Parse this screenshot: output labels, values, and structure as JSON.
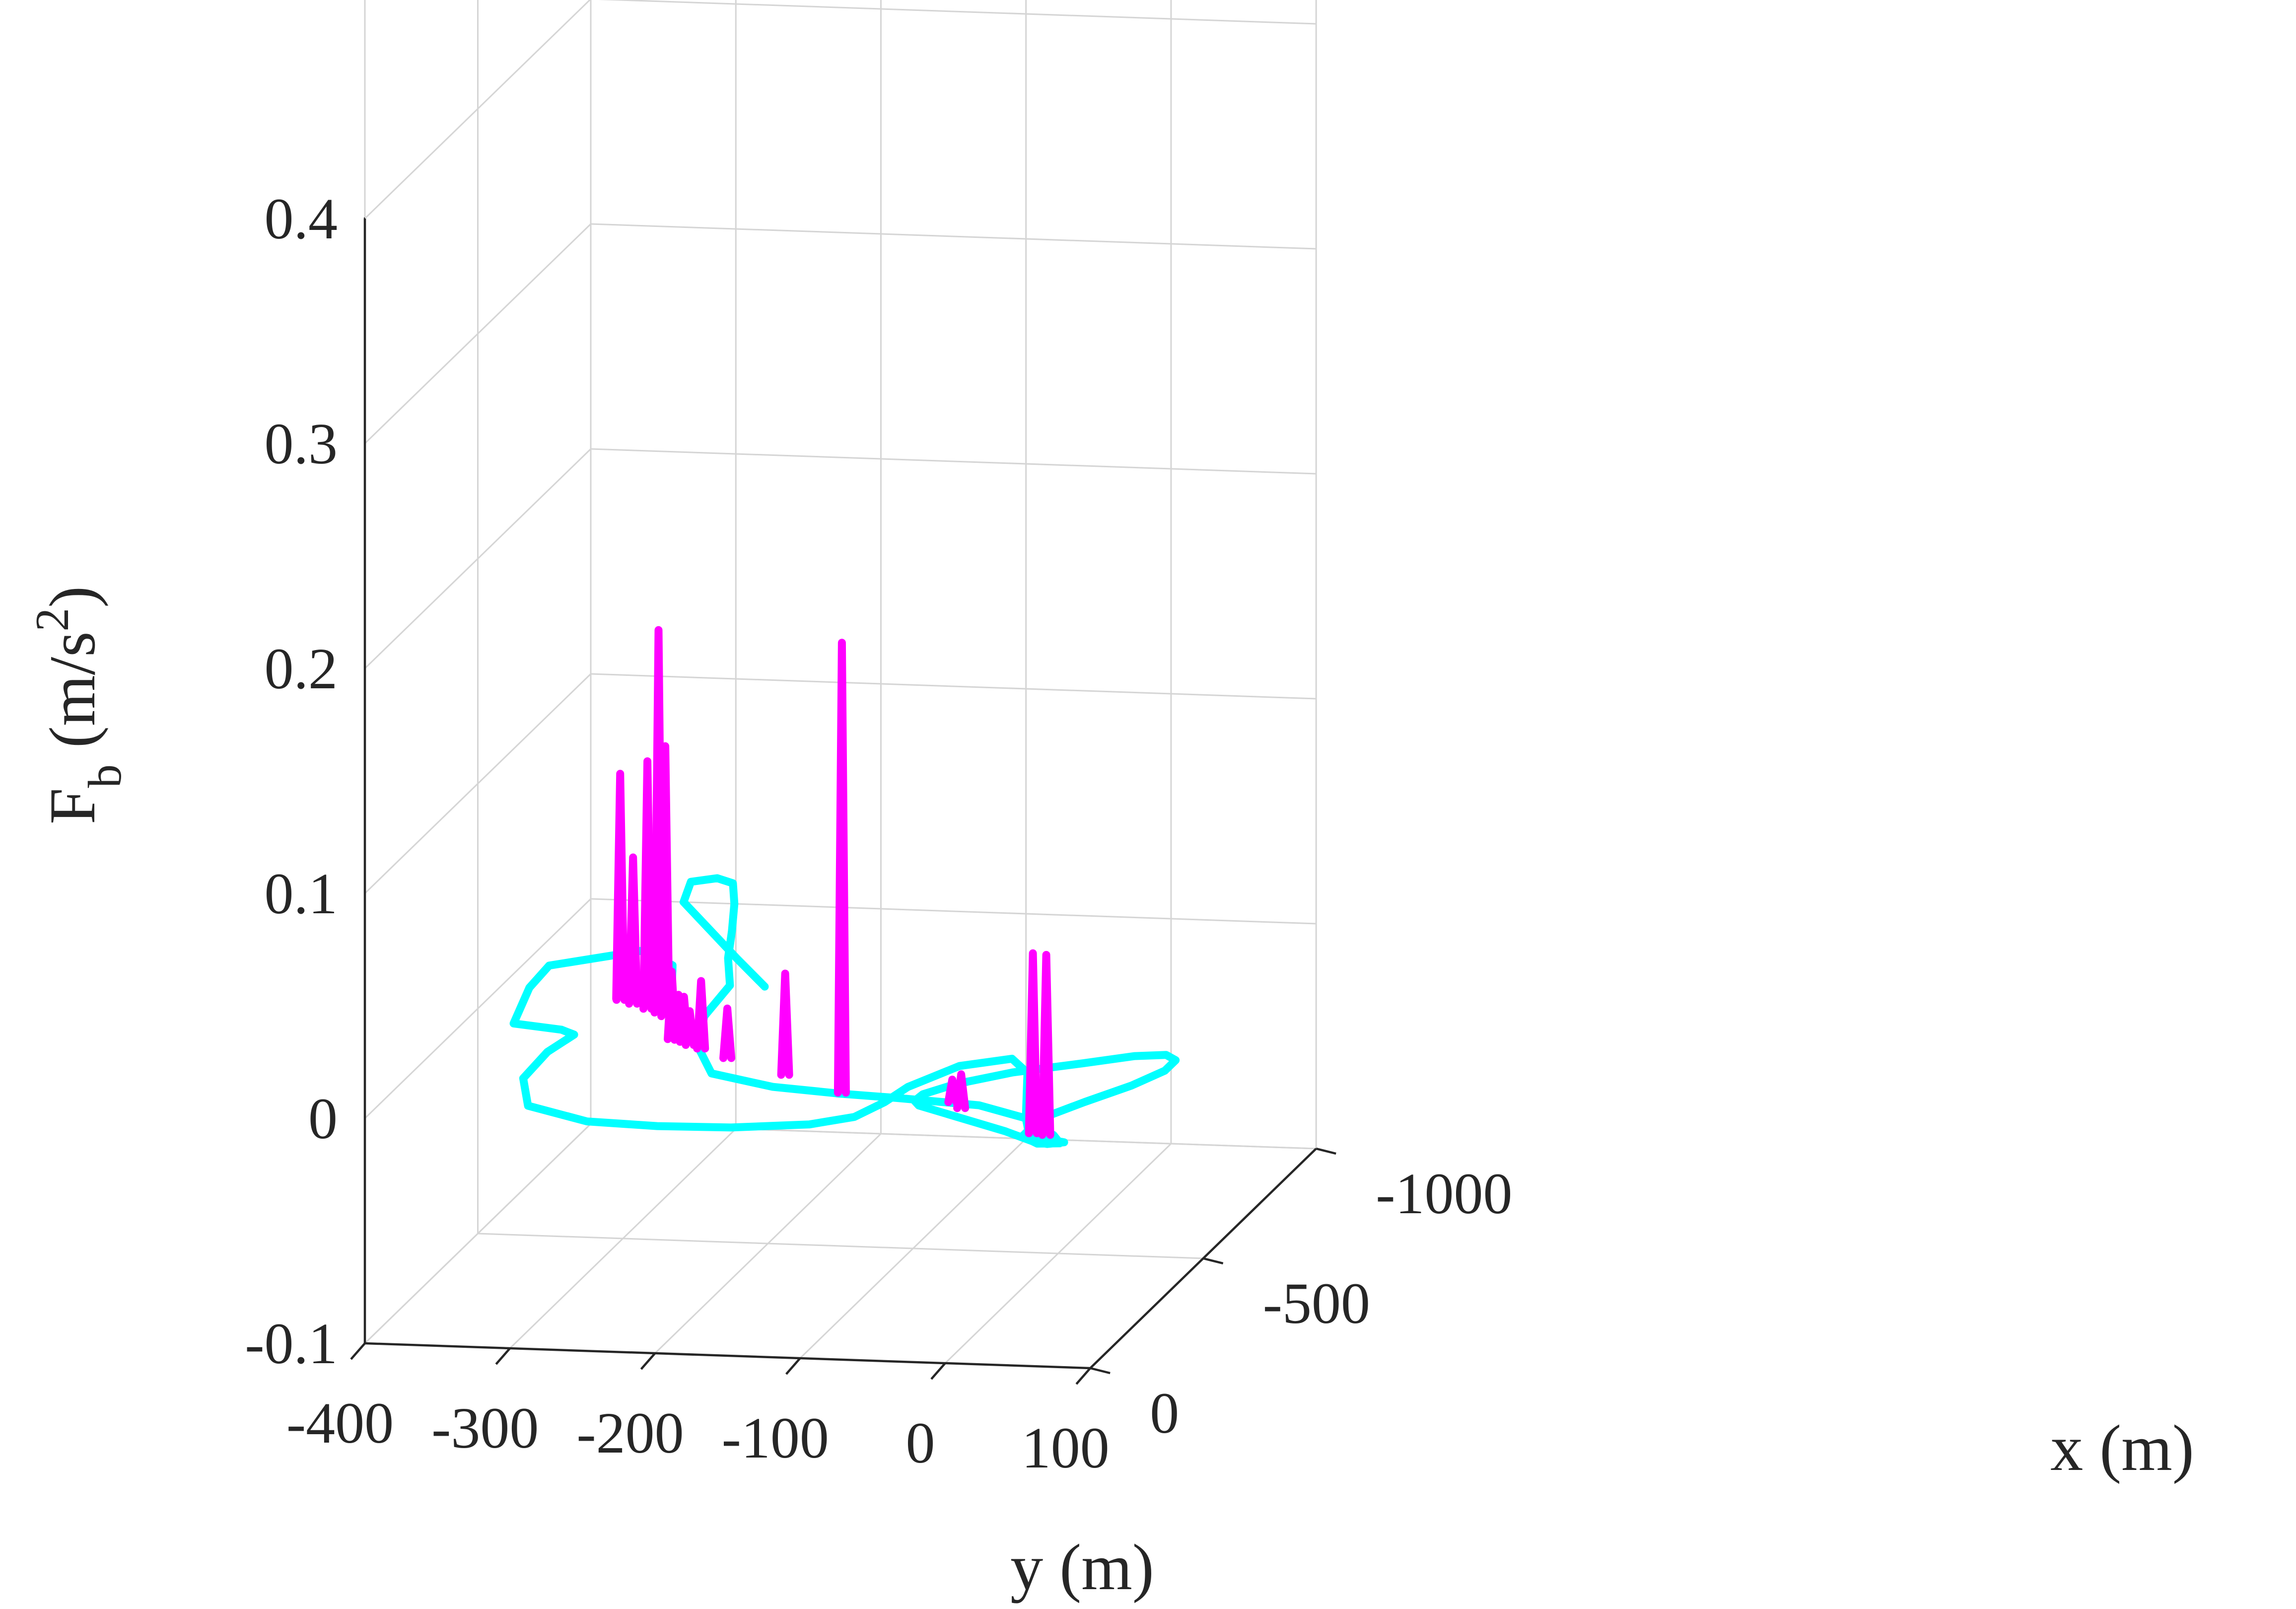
{
  "chart_data": {
    "type": "line",
    "projection": "3d",
    "xlabel": "x (m)",
    "ylabel": "y (m)",
    "zlabel": "F",
    "zlabel_sub": "b",
    "zlabel_unit_pre": " (m/s",
    "zlabel_unit_sup": "2",
    "zlabel_unit_post": ")",
    "xlim": [
      -1000,
      0
    ],
    "ylim": [
      -400,
      100
    ],
    "zlim": [
      -0.1,
      0.4
    ],
    "x_ticks": [
      {
        "value": -1000,
        "label": "-1000"
      },
      {
        "value": -500,
        "label": "-500"
      },
      {
        "value": 0,
        "label": "0"
      }
    ],
    "y_ticks": [
      {
        "value": -400,
        "label": "-400"
      },
      {
        "value": -300,
        "label": "-300"
      },
      {
        "value": -200,
        "label": "-200"
      },
      {
        "value": -100,
        "label": "-100"
      },
      {
        "value": 0,
        "label": "0"
      },
      {
        "value": 100,
        "label": "100"
      }
    ],
    "z_ticks": [
      {
        "value": 0.4,
        "label": "0.4"
      },
      {
        "value": 0.3,
        "label": "0.3"
      },
      {
        "value": 0.2,
        "label": "0.2"
      },
      {
        "value": 0.1,
        "label": "0.1"
      },
      {
        "value": 0,
        "label": "0"
      },
      {
        "value": -0.1,
        "label": "-0.1"
      }
    ],
    "grid": true,
    "colors": {
      "path": "#00ffff",
      "force": "#ff00ff",
      "axis": "#262626",
      "grid": "#d5d5d5"
    },
    "path": [
      {
        "x": -640,
        "y": -224,
        "z": 0
      },
      {
        "x": -760,
        "y": -262,
        "z": 0
      },
      {
        "x": -880,
        "y": -299,
        "z": 0
      },
      {
        "x": -1000,
        "y": -336,
        "z": 0
      },
      {
        "x": -1090,
        "y": -345,
        "z": 0
      },
      {
        "x": -1110,
        "y": -330,
        "z": 0
      },
      {
        "x": -1090,
        "y": -316,
        "z": 0
      },
      {
        "x": -1000,
        "y": -301,
        "z": 0
      },
      {
        "x": -880,
        "y": -284,
        "z": 0
      },
      {
        "x": -760,
        "y": -268,
        "z": 0
      },
      {
        "x": -640,
        "y": -248,
        "z": 0
      },
      {
        "x": -500,
        "y": -244,
        "z": 0
      },
      {
        "x": -360,
        "y": -226,
        "z": 0
      },
      {
        "x": -250,
        "y": -200,
        "z": 0
      },
      {
        "x": -200,
        "y": -150,
        "z": 0
      },
      {
        "x": -180,
        "y": -100,
        "z": 0
      },
      {
        "x": -170,
        "y": -60,
        "z": 0
      },
      {
        "x": -150,
        "y": 0,
        "z": 0
      },
      {
        "x": -100,
        "y": 40,
        "z": 0
      },
      {
        "x": -30,
        "y": 70,
        "z": 0
      },
      {
        "x": 5,
        "y": 80,
        "z": 0
      },
      {
        "x": 10,
        "y": 65,
        "z": 0
      },
      {
        "x": -20,
        "y": 50,
        "z": 0
      },
      {
        "x": -100,
        "y": 50,
        "z": 0
      },
      {
        "x": -180,
        "y": 68,
        "z": 0
      },
      {
        "x": -260,
        "y": 88,
        "z": 0
      },
      {
        "x": -330,
        "y": 100,
        "z": 0
      },
      {
        "x": -378,
        "y": 100,
        "z": 0
      },
      {
        "x": -400,
        "y": 90,
        "z": 0
      },
      {
        "x": -390,
        "y": 70,
        "z": 0
      },
      {
        "x": -350,
        "y": 40,
        "z": 0
      },
      {
        "x": -300,
        "y": 0,
        "z": 0
      },
      {
        "x": -240,
        "y": -30,
        "z": 0
      },
      {
        "x": -190,
        "y": -45,
        "z": 0
      },
      {
        "x": -160,
        "y": -46,
        "z": 0
      },
      {
        "x": -140,
        "y": -40,
        "z": 0
      },
      {
        "x": -100,
        "y": -10,
        "z": 0
      },
      {
        "x": -40,
        "y": 35,
        "z": 0
      },
      {
        "x": 0,
        "y": 60,
        "z": 0
      },
      {
        "x": 10,
        "y": 72,
        "z": 0
      },
      {
        "x": 0,
        "y": 82,
        "z": 0
      },
      {
        "x": -10,
        "y": 70,
        "z": 0
      },
      {
        "x": -20,
        "y": 55,
        "z": 0
      },
      {
        "x": -100,
        "y": 40,
        "z": 0
      },
      {
        "x": -200,
        "y": 25,
        "z": 0
      },
      {
        "x": -300,
        "y": 10,
        "z": 0
      },
      {
        "x": -360,
        "y": -10,
        "z": 0
      },
      {
        "x": -320,
        "y": -40,
        "z": 0
      },
      {
        "x": -220,
        "y": -60,
        "z": 0
      },
      {
        "x": -150,
        "y": -65,
        "z": 0
      },
      {
        "x": -80,
        "y": -75,
        "z": 0
      },
      {
        "x": -40,
        "y": -100,
        "z": 0
      },
      {
        "x": -15,
        "y": -150,
        "z": 0
      },
      {
        "x": -10,
        "y": -200,
        "z": 0
      },
      {
        "x": -20,
        "y": -250,
        "z": 0
      },
      {
        "x": -80,
        "y": -300,
        "z": 0
      },
      {
        "x": -200,
        "y": -322,
        "z": 0
      },
      {
        "x": -320,
        "y": -324,
        "z": 0
      },
      {
        "x": -400,
        "y": -318,
        "z": 0
      },
      {
        "x": -420,
        "y": -330,
        "z": 0
      },
      {
        "x": -440,
        "y": -366,
        "z": 0
      },
      {
        "x": -600,
        "y": -380,
        "z": 0
      },
      {
        "x": -700,
        "y": -382,
        "z": 0
      },
      {
        "x": -780,
        "y": -330,
        "z": 0
      },
      {
        "x": -720,
        "y": -300,
        "z": 0
      },
      {
        "x": -640,
        "y": -288,
        "z": 0
      }
    ],
    "force_spikes": [
      {
        "y": -312,
        "x": -565,
        "z": 0.1
      },
      {
        "y": -311,
        "x": -560,
        "z": 0.045
      },
      {
        "y": -300,
        "x": -545,
        "z": 0.065
      },
      {
        "y": -287,
        "x": -525,
        "z": 0.11
      },
      {
        "y": -277,
        "x": -510,
        "z": 0.17
      },
      {
        "y": -270,
        "x": -495,
        "z": 0.12
      },
      {
        "y": -250,
        "x": -395,
        "z": 0.03
      },
      {
        "y": -245,
        "x": -393,
        "z": 0.02
      },
      {
        "y": -240,
        "x": -385,
        "z": 0.02
      },
      {
        "y": -234,
        "x": -372,
        "z": 0.015
      },
      {
        "y": -224,
        "x": -358,
        "z": 0.03
      },
      {
        "y": -200,
        "x": -320,
        "z": 0.022
      },
      {
        "y": -150,
        "x": -255,
        "z": 0.045
      },
      {
        "y": -100,
        "x": -185,
        "z": 0.2
      },
      {
        "y": -20,
        "x": -160,
        "z": 0.01
      },
      {
        "y": -10,
        "x": -135,
        "z": 0.015
      },
      {
        "y": 55,
        "x": -35,
        "z": 0.08
      },
      {
        "y": 65,
        "x": -30,
        "z": 0.08
      }
    ]
  }
}
